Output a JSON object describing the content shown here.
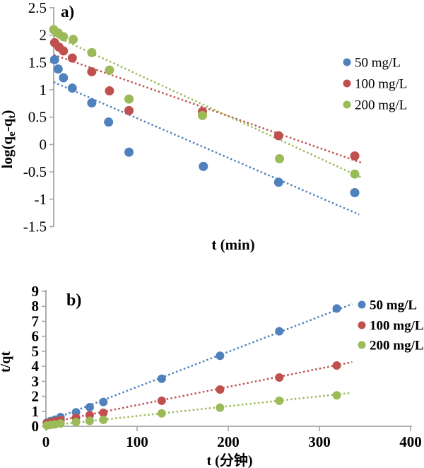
{
  "colors": {
    "blue": "#4f81bd",
    "red": "#c0504d",
    "green": "#9bbb59",
    "axis": "#a6a6a6",
    "text": "#000000"
  },
  "chart_data": [
    {
      "id": "a",
      "type": "scatter",
      "panel_label": "a)",
      "xlabel": "t (min)",
      "ylabel_parts": [
        {
          "t": "log(q"
        },
        {
          "t": "e",
          "sub": true
        },
        {
          "t": "-q"
        },
        {
          "t": "t",
          "sub": true
        },
        {
          "t": ")"
        }
      ],
      "ylim": [
        -1.5,
        2.5
      ],
      "xlim": [
        0,
        360
      ],
      "yticks": [
        "2.5",
        "2",
        "1.5",
        "1",
        "0.5",
        "0",
        "-0.5",
        "-1",
        "-1.5"
      ],
      "xticks": [],
      "grid": false,
      "legend_position": "right",
      "legend": [
        "50 mg/L",
        "100 mg/L",
        "200 mg/L"
      ],
      "series": [
        {
          "name": "50 mg/L",
          "color": "blue",
          "x": [
            1,
            5,
            11,
            21,
            43,
            62,
            85,
            169,
            254,
            340
          ],
          "y": [
            1.55,
            1.38,
            1.22,
            1.03,
            0.76,
            0.41,
            -0.14,
            -0.4,
            -0.69,
            -0.88
          ],
          "trend": {
            "x0": 0,
            "y0": 1.14,
            "x1": 345,
            "y1": -1.28
          }
        },
        {
          "name": "100 mg/L",
          "color": "red",
          "x": [
            1,
            6,
            11,
            21,
            43,
            63,
            85,
            168,
            254,
            340
          ],
          "y": [
            1.86,
            1.78,
            1.71,
            1.58,
            1.33,
            0.98,
            0.62,
            0.6,
            0.16,
            -0.21
          ],
          "trend": {
            "x0": 0,
            "y0": 1.64,
            "x1": 347,
            "y1": -0.33
          }
        },
        {
          "name": "200 mg/L",
          "color": "green",
          "x": [
            0,
            5,
            11,
            22,
            43,
            63,
            85,
            168,
            255,
            340
          ],
          "y": [
            2.1,
            2.04,
            1.97,
            1.92,
            1.68,
            1.36,
            0.83,
            0.53,
            -0.26,
            -0.54
          ],
          "trend": {
            "x0": 0,
            "y0": 1.99,
            "x1": 347,
            "y1": -0.6
          }
        }
      ]
    },
    {
      "id": "b",
      "type": "scatter",
      "panel_label": "b)",
      "xlabel": "t (分钟)",
      "ylabel_parts": [
        {
          "t": "t/qt"
        }
      ],
      "ylim": [
        0,
        9
      ],
      "xlim": [
        0,
        400
      ],
      "yticks": [
        "9",
        "8",
        "7",
        "6",
        "5",
        "4",
        "3",
        "2",
        "1",
        "0"
      ],
      "xticks": [
        "0",
        "100",
        "200",
        "300",
        "400"
      ],
      "grid": false,
      "legend_position": "right",
      "legend": [
        "50 mg/L",
        "100 mg/L",
        "200 mg/L"
      ],
      "series": [
        {
          "name": "50 mg/L",
          "color": "blue",
          "x": [
            1,
            5,
            10,
            16,
            33,
            48,
            63,
            127,
            191,
            256,
            319
          ],
          "y": [
            0.25,
            0.34,
            0.44,
            0.61,
            0.93,
            1.27,
            1.62,
            3.17,
            4.7,
            6.33,
            7.85
          ],
          "trend": {
            "x0": 0,
            "y0": 0.28,
            "x1": 336,
            "y1": 8.15
          }
        },
        {
          "name": "100 mg/L",
          "color": "red",
          "x": [
            1,
            5,
            10,
            16,
            33,
            48,
            63,
            127,
            191,
            256,
            319
          ],
          "y": [
            0.2,
            0.27,
            0.33,
            0.42,
            0.58,
            0.74,
            0.9,
            1.7,
            2.45,
            3.25,
            4.05
          ],
          "trend": {
            "x0": 0,
            "y0": 0.2,
            "x1": 336,
            "y1": 4.28
          }
        },
        {
          "name": "200 mg/L",
          "color": "green",
          "x": [
            1,
            5,
            10,
            16,
            33,
            48,
            63,
            127,
            191,
            256,
            319
          ],
          "y": [
            0.05,
            0.09,
            0.13,
            0.19,
            0.28,
            0.36,
            0.43,
            0.86,
            1.24,
            1.7,
            2.06
          ],
          "trend": {
            "x0": 0,
            "y0": 0.03,
            "x1": 334,
            "y1": 2.22
          }
        }
      ]
    }
  ]
}
